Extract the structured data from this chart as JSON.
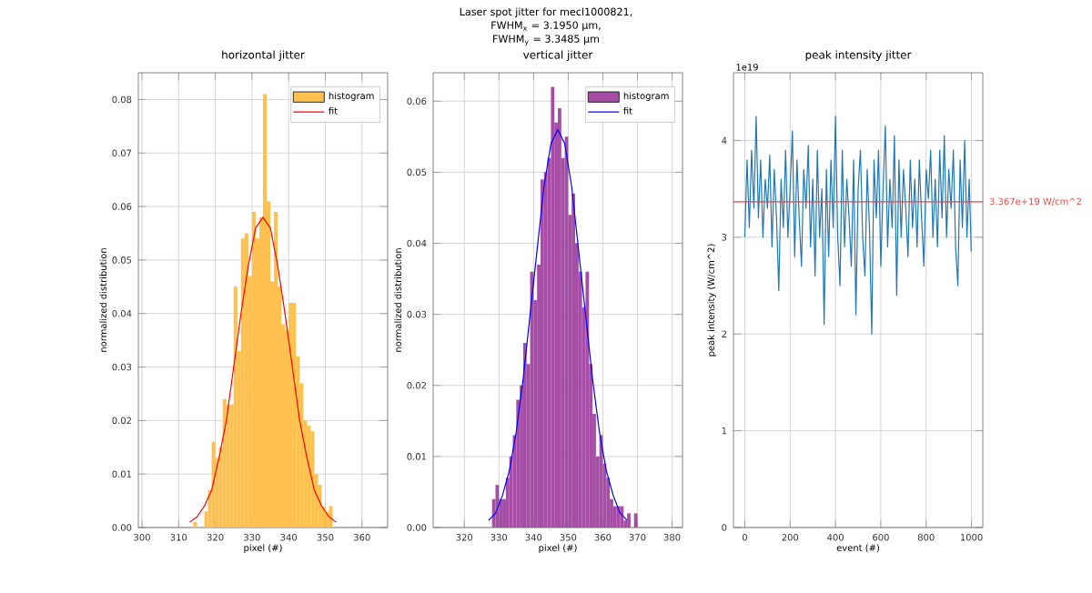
{
  "chart_data": [
    {
      "type": "histogram",
      "title": "horizontal jitter",
      "xlabel": "pixel (#)",
      "ylabel": "normalized distribution",
      "annotations": [
        "Laser spot jitter for mecl1000821,",
        "FWHM$_{x}$ = 3.1950 μm,",
        "FWHM$_{y}$ = 3.3485 μm"
      ],
      "xlim": [
        299,
        367
      ],
      "ylim": [
        0,
        0.085
      ],
      "xticks": [
        300,
        310,
        320,
        330,
        340,
        350,
        360
      ],
      "yticks": [
        {
          "value": 0,
          "label": "0.00"
        },
        {
          "value": 0.01,
          "label": "0.01"
        },
        {
          "value": 0.02,
          "label": "0.02"
        },
        {
          "value": 0.03,
          "label": "0.03"
        },
        {
          "value": 0.04,
          "label": "0.04"
        },
        {
          "value": 0.05,
          "label": "0.05"
        },
        {
          "value": 0.06,
          "label": "0.06"
        },
        {
          "value": 0.07,
          "label": "0.07"
        },
        {
          "value": 0.08,
          "label": "0.08"
        }
      ],
      "grid": true,
      "legend": "top right",
      "series": [
        {
          "name": "histogram",
          "color": "#ffc04d",
          "bins": [
            314,
            315,
            316,
            317,
            318,
            319,
            320,
            321,
            322,
            323,
            324,
            325,
            326,
            327,
            328,
            329,
            330,
            331,
            332,
            333,
            334,
            335,
            336,
            337,
            338,
            339,
            340,
            341,
            342,
            343,
            344,
            345,
            346,
            347,
            348,
            349,
            350,
            351,
            352
          ],
          "values": [
            0.001,
            0,
            0,
            0.003,
            0.007,
            0.016,
            0.013,
            0.015,
            0.024,
            0.023,
            0.023,
            0.045,
            0.033,
            0.054,
            0.055,
            0.047,
            0.059,
            0.054,
            0.058,
            0.081,
            0.061,
            0.046,
            0.059,
            0.045,
            0.038,
            0.037,
            0.042,
            0.042,
            0.032,
            0.027,
            0.02,
            0.019,
            0.018,
            0.01,
            0.008,
            0.004,
            0.003,
            0.004
          ]
        },
        {
          "name": "fit",
          "type": "line",
          "color": "#ff0000",
          "x": [
            313,
            315,
            317,
            319,
            321,
            323,
            325,
            327,
            329,
            331,
            333,
            335,
            337,
            339,
            341,
            343,
            345,
            347,
            349,
            351,
            353
          ],
          "values": [
            0.001,
            0.002,
            0.004,
            0.007,
            0.013,
            0.02,
            0.03,
            0.04,
            0.049,
            0.056,
            0.058,
            0.056,
            0.049,
            0.04,
            0.03,
            0.02,
            0.013,
            0.007,
            0.004,
            0.002,
            0.001
          ]
        }
      ]
    },
    {
      "type": "histogram",
      "title": "vertical jitter",
      "xlabel": "pixel (#)",
      "ylabel": "normalized distribution",
      "xlim": [
        311,
        383
      ],
      "ylim": [
        0,
        0.064
      ],
      "xticks": [
        320,
        330,
        340,
        350,
        360,
        370,
        380
      ],
      "yticks": [
        {
          "value": 0,
          "label": "0.00"
        },
        {
          "value": 0.01,
          "label": "0.01"
        },
        {
          "value": 0.02,
          "label": "0.02"
        },
        {
          "value": 0.03,
          "label": "0.03"
        },
        {
          "value": 0.04,
          "label": "0.04"
        },
        {
          "value": 0.05,
          "label": "0.05"
        },
        {
          "value": 0.06,
          "label": "0.06"
        }
      ],
      "grid": true,
      "legend": "top right",
      "series": [
        {
          "name": "histogram",
          "color": "#a64da6",
          "bins": [
            328,
            329,
            330,
            331,
            332,
            333,
            334,
            335,
            336,
            337,
            338,
            339,
            340,
            341,
            342,
            343,
            344,
            345,
            346,
            347,
            348,
            349,
            350,
            351,
            352,
            353,
            354,
            355,
            356,
            357,
            358,
            359,
            360,
            361,
            362,
            363,
            364,
            365,
            366,
            367,
            368,
            369,
            370
          ],
          "values": [
            0.004,
            0.006,
            0.004,
            0.004,
            0.007,
            0.01,
            0.013,
            0.018,
            0.02,
            0.026,
            0.023,
            0.036,
            0.032,
            0.037,
            0.049,
            0.05,
            0.052,
            0.062,
            0.057,
            0.059,
            0.052,
            0.055,
            0.044,
            0.047,
            0.04,
            0.036,
            0.031,
            0.036,
            0.023,
            0.016,
            0.01,
            0.013,
            0.009,
            0.007,
            0.004,
            0.003,
            0.003,
            0.003,
            0.001,
            0.002,
            0,
            0.002
          ]
        },
        {
          "name": "fit",
          "type": "line",
          "color": "#0000ff",
          "x": [
            327,
            329,
            331,
            333,
            335,
            337,
            339,
            341,
            343,
            345,
            347,
            349,
            351,
            353,
            355,
            357,
            359,
            361,
            363,
            365,
            367
          ],
          "values": [
            0.001,
            0.002,
            0.0045,
            0.008,
            0.0135,
            0.021,
            0.03,
            0.039,
            0.048,
            0.054,
            0.056,
            0.054,
            0.048,
            0.039,
            0.03,
            0.021,
            0.0135,
            0.008,
            0.0045,
            0.002,
            0.001
          ]
        }
      ]
    },
    {
      "type": "line",
      "title": "peak intensity jitter",
      "xlabel": "event (#)",
      "ylabel": "peak intensity (W/cm^2)",
      "annotations": [
        "1e19"
      ],
      "xlim": [
        -50,
        1050
      ],
      "ylim": [
        0,
        4.7
      ],
      "xticks": [
        0,
        200,
        400,
        600,
        800,
        1000
      ],
      "yticks": [
        0,
        1,
        2,
        3,
        4
      ],
      "grid": true,
      "ref_lines": [
        {
          "axis": "y",
          "value": 3.367,
          "label": "3.367e+19 W/cm^2",
          "color": "#f04040"
        }
      ],
      "series": [
        {
          "color": "#1f77b4",
          "x": [
            0,
            10,
            20,
            30,
            40,
            50,
            60,
            70,
            80,
            90,
            100,
            110,
            120,
            130,
            140,
            150,
            160,
            170,
            180,
            190,
            200,
            210,
            220,
            230,
            240,
            250,
            260,
            270,
            280,
            290,
            300,
            310,
            320,
            330,
            340,
            350,
            360,
            370,
            380,
            390,
            400,
            410,
            420,
            430,
            440,
            450,
            460,
            470,
            480,
            490,
            500,
            510,
            520,
            530,
            540,
            550,
            560,
            570,
            580,
            590,
            600,
            610,
            620,
            630,
            640,
            650,
            660,
            670,
            680,
            690,
            700,
            710,
            720,
            730,
            740,
            750,
            760,
            770,
            780,
            790,
            800,
            810,
            820,
            830,
            840,
            850,
            860,
            870,
            880,
            890,
            900,
            910,
            920,
            930,
            940,
            950,
            960,
            970,
            980,
            990,
            999
          ],
          "values": [
            3.0,
            3.8,
            3.1,
            3.9,
            3.3,
            4.25,
            3.2,
            3.8,
            3.0,
            3.6,
            3.3,
            3.85,
            2.9,
            3.7,
            3.2,
            2.45,
            3.6,
            3.1,
            3.9,
            3.0,
            3.5,
            4.1,
            2.8,
            3.8,
            3.2,
            2.7,
            3.7,
            3.3,
            3.95,
            2.9,
            3.6,
            2.6,
            3.9,
            3.0,
            3.5,
            2.1,
            3.7,
            2.8,
            3.8,
            3.1,
            4.25,
            3.0,
            2.5,
            3.9,
            2.9,
            3.6,
            3.2,
            2.7,
            3.8,
            2.2,
            3.5,
            3.9,
            3.0,
            2.6,
            3.7,
            3.1,
            2.0,
            3.8,
            3.2,
            3.9,
            2.7,
            3.5,
            4.15,
            2.9,
            3.6,
            3.1,
            4.05,
            2.4,
            3.8,
            3.0,
            3.7,
            3.3,
            2.8,
            3.8,
            3.1,
            3.6,
            2.9,
            3.8,
            3.2,
            2.7,
            3.7,
            3.4,
            3.9,
            3.0,
            3.6,
            2.9,
            3.9,
            3.2,
            4.05,
            3.0,
            3.7,
            3.3,
            3.9,
            2.9,
            2.5,
            3.8,
            3.1,
            4.0,
            3.0,
            3.6,
            2.85
          ]
        }
      ]
    }
  ]
}
